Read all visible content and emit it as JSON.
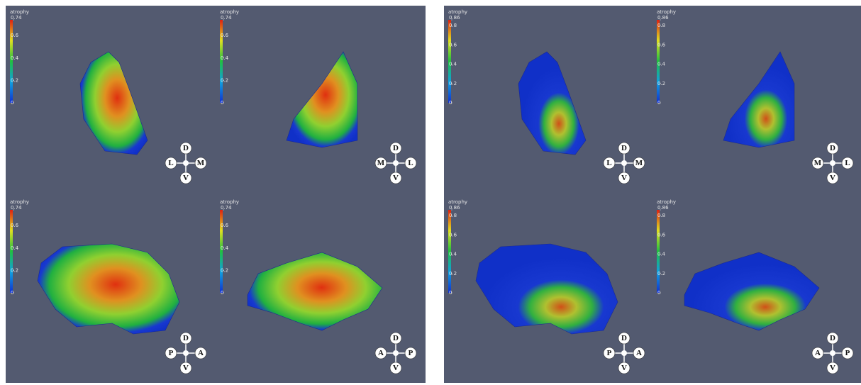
{
  "panels": [
    {
      "views": [
        {
          "colorbar": {
            "title": "atrophy",
            "ticks": [
              0.74,
              0.6,
              0.4,
              0.2,
              0
            ]
          },
          "orientation": {
            "top": "D",
            "left": "L",
            "right": "M",
            "bottom": "V"
          }
        },
        {
          "colorbar": {
            "title": "atrophy",
            "ticks": [
              0.74,
              0.6,
              0.4,
              0.2,
              0
            ]
          },
          "orientation": {
            "top": "D",
            "left": "M",
            "right": "L",
            "bottom": "V"
          }
        },
        {
          "colorbar": {
            "title": "atrophy",
            "ticks": [
              0.74,
              0.6,
              0.4,
              0.2,
              0
            ]
          },
          "orientation": {
            "top": "D",
            "left": "P",
            "right": "A",
            "bottom": "V"
          }
        },
        {
          "colorbar": {
            "title": "atrophy",
            "ticks": [
              0.74,
              0.6,
              0.4,
              0.2,
              0
            ]
          },
          "orientation": {
            "top": "D",
            "left": "A",
            "right": "P",
            "bottom": "V"
          }
        }
      ]
    },
    {
      "views": [
        {
          "colorbar": {
            "title": "atrophy",
            "ticks": [
              0.86,
              0.8,
              0.6,
              0.4,
              0.2,
              0
            ]
          },
          "orientation": {
            "top": "D",
            "left": "L",
            "right": "M",
            "bottom": "V"
          }
        },
        {
          "colorbar": {
            "title": "atrophy",
            "ticks": [
              0.86,
              0.8,
              0.6,
              0.4,
              0.2,
              0
            ]
          },
          "orientation": {
            "top": "D",
            "left": "M",
            "right": "L",
            "bottom": "V"
          }
        },
        {
          "colorbar": {
            "title": "atrophy",
            "ticks": [
              0.86,
              0.8,
              0.6,
              0.4,
              0.2,
              0
            ]
          },
          "orientation": {
            "top": "D",
            "left": "P",
            "right": "A",
            "bottom": "V"
          }
        },
        {
          "colorbar": {
            "title": "atrophy",
            "ticks": [
              0.86,
              0.8,
              0.6,
              0.4,
              0.2,
              0
            ]
          },
          "orientation": {
            "top": "D",
            "left": "A",
            "right": "P",
            "bottom": "V"
          }
        }
      ]
    }
  ]
}
